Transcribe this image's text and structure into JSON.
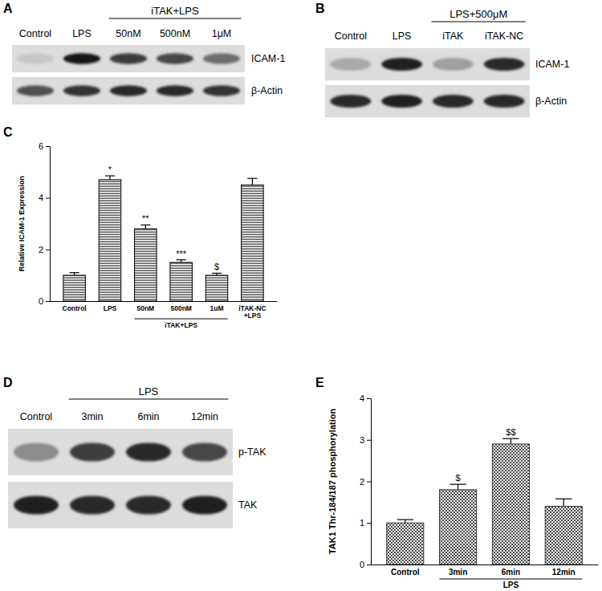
{
  "chart_data": [
    {
      "panel": "C",
      "type": "bar",
      "y_label": "Relative ICAM-1 Expression",
      "categories": [
        "Control",
        "LPS",
        "50nM",
        "500nM",
        "1uM",
        "iTAK-NC\n+LPS"
      ],
      "values": [
        1.0,
        4.7,
        2.8,
        1.5,
        1.0,
        4.5
      ],
      "errors": [
        0.1,
        0.15,
        0.15,
        0.1,
        0.08,
        0.25
      ],
      "significance": [
        null,
        "*",
        "**",
        "***",
        "$",
        null
      ],
      "group_label": {
        "text": "iTAK+LPS",
        "from": 2,
        "to": 4
      },
      "color": "#000000",
      "ylim": [
        0,
        6
      ],
      "yticks": [
        0,
        2,
        4,
        6
      ]
    },
    {
      "panel": "E",
      "type": "bar",
      "y_label": "TAK1 Thr-184/187 phosphorylation",
      "categories": [
        "Control",
        "3min",
        "6min",
        "12min"
      ],
      "values": [
        1.0,
        1.8,
        2.9,
        1.4
      ],
      "errors": [
        0.08,
        0.13,
        0.13,
        0.18
      ],
      "significance": [
        null,
        "$",
        "$$",
        null
      ],
      "group_label": {
        "text": "LPS",
        "from": 1,
        "to": 3
      },
      "color": "#333333",
      "ylim": [
        0,
        4
      ],
      "yticks": [
        0,
        1,
        2,
        3,
        4
      ]
    }
  ],
  "blots": [
    {
      "panel": "A",
      "header": {
        "text": "iTAK+LPS",
        "from": 2,
        "to": 4
      },
      "lanes": [
        "Control",
        "LPS",
        "50nM",
        "500nM",
        "1μM"
      ],
      "rows": [
        {
          "label": "ICAM-1",
          "bands": [
            0.1,
            1.0,
            0.8,
            0.75,
            0.55
          ]
        },
        {
          "label": "β-Actin",
          "bands": [
            0.7,
            0.85,
            0.9,
            0.9,
            0.85
          ]
        }
      ]
    },
    {
      "panel": "B",
      "header": {
        "text": "LPS+500μM",
        "from": 2,
        "to": 3
      },
      "lanes": [
        "Control",
        "LPS",
        "iTAK",
        "iTAK-NC"
      ],
      "rows": [
        {
          "label": "ICAM-1",
          "bands": [
            0.25,
            0.95,
            0.3,
            0.9
          ]
        },
        {
          "label": "β-Actin",
          "bands": [
            0.9,
            0.95,
            0.9,
            0.9
          ]
        }
      ]
    },
    {
      "panel": "D",
      "header": {
        "text": "LPS",
        "from": 1,
        "to": 3
      },
      "lanes": [
        "Control",
        "3min",
        "6min",
        "12min"
      ],
      "rows": [
        {
          "label": "p-TAK",
          "bands": [
            0.4,
            0.8,
            0.9,
            0.75
          ]
        },
        {
          "label": "TAK",
          "bands": [
            0.95,
            0.9,
            0.9,
            0.95
          ]
        }
      ]
    }
  ]
}
